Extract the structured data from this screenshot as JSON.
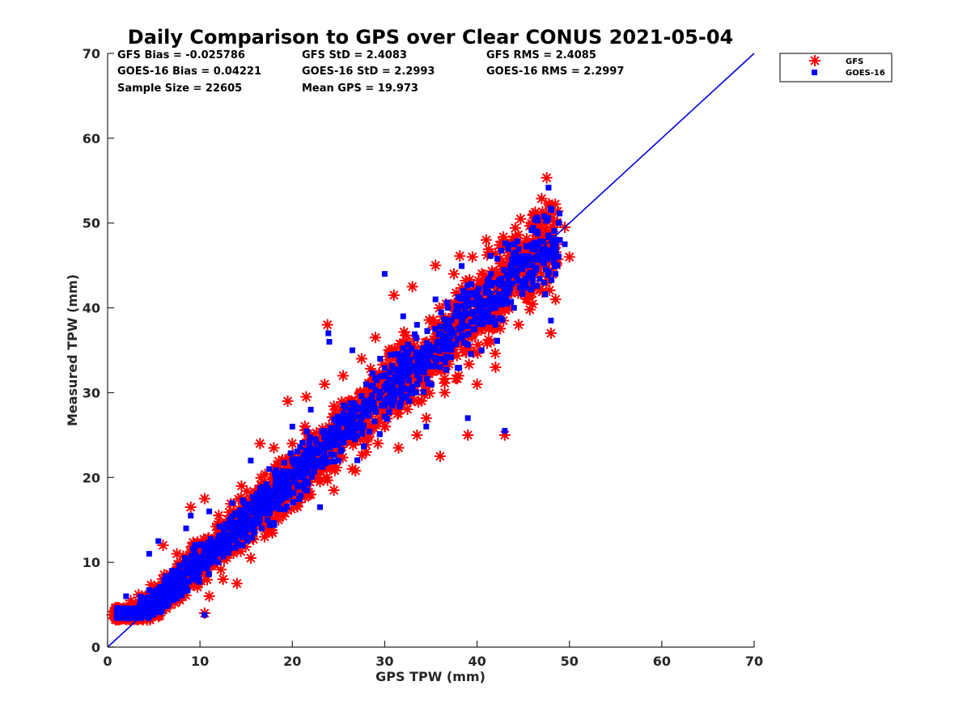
{
  "chart_data": {
    "type": "scatter",
    "title": "Daily Comparison to GPS over Clear CONUS 2021-05-04",
    "xlabel": "GPS TPW (mm)",
    "ylabel": "Measured TPW (mm)",
    "xlim": [
      0,
      70
    ],
    "ylim": [
      0,
      70
    ],
    "xticks": [
      "0",
      "10",
      "20",
      "30",
      "40",
      "50",
      "60",
      "70"
    ],
    "yticks": [
      "0",
      "10",
      "20",
      "30",
      "40",
      "50",
      "60",
      "70"
    ],
    "grid": false,
    "legend_position": "top-right outside",
    "stats": [
      [
        "GFS Bias = -0.025786",
        "GFS StD = 2.4083",
        "GFS RMS = 2.4085"
      ],
      [
        "GOES-16 Bias = 0.04221",
        "GOES-16 StD = 2.2993",
        "GOES-16 RMS = 2.2997"
      ],
      [
        "Sample Size = 22605",
        "Mean GPS = 19.973"
      ]
    ],
    "reference_line": {
      "name": "1:1 line",
      "x": [
        0,
        70
      ],
      "y": [
        0,
        70
      ],
      "color": "#0000dd"
    },
    "series": [
      {
        "name": "GFS",
        "marker": "asterisk",
        "color": "#ff0000",
        "approx_sample_points": [
          [
            0.5,
            3.8
          ],
          [
            1.5,
            3.5
          ],
          [
            2.5,
            5.5
          ],
          [
            4,
            4.5
          ],
          [
            5,
            6
          ],
          [
            6,
            12
          ],
          [
            7.5,
            11
          ],
          [
            8,
            9
          ],
          [
            9,
            16.5
          ],
          [
            10.5,
            17.5
          ],
          [
            10.5,
            4
          ],
          [
            11,
            6
          ],
          [
            12.5,
            8
          ],
          [
            13,
            14
          ],
          [
            14,
            7.5
          ],
          [
            14.5,
            19
          ],
          [
            15.5,
            10.5
          ],
          [
            16.5,
            24
          ],
          [
            17,
            13
          ],
          [
            18,
            23.5
          ],
          [
            18.5,
            15
          ],
          [
            19.5,
            29
          ],
          [
            20,
            24
          ],
          [
            20.5,
            17
          ],
          [
            21.5,
            29.5
          ],
          [
            22,
            18
          ],
          [
            23,
            19.5
          ],
          [
            23.5,
            31
          ],
          [
            23.8,
            38
          ],
          [
            24.5,
            18.5
          ],
          [
            25.5,
            32
          ],
          [
            26.5,
            21
          ],
          [
            27.5,
            34
          ],
          [
            28,
            23
          ],
          [
            29,
            36.5
          ],
          [
            30,
            26
          ],
          [
            31,
            41.5
          ],
          [
            31.5,
            23.5
          ],
          [
            33,
            42.5
          ],
          [
            33.5,
            25
          ],
          [
            34.5,
            27
          ],
          [
            35.5,
            45
          ],
          [
            36,
            22.5
          ],
          [
            36.5,
            30
          ],
          [
            37.5,
            44
          ],
          [
            38,
            32
          ],
          [
            39,
            25
          ],
          [
            39.5,
            46
          ],
          [
            40,
            31
          ],
          [
            41,
            48
          ],
          [
            41.5,
            36
          ],
          [
            42,
            33
          ],
          [
            42.5,
            47
          ],
          [
            43,
            25
          ],
          [
            44,
            48
          ],
          [
            44.5,
            38
          ],
          [
            45.5,
            41
          ],
          [
            46.5,
            48.5
          ],
          [
            47,
            44
          ],
          [
            48,
            37
          ],
          [
            48.5,
            41
          ],
          [
            49.5,
            49.5
          ],
          [
            50,
            46
          ]
        ]
      },
      {
        "name": "GOES-16",
        "marker": "square",
        "color": "#0000ff",
        "approx_sample_points": [
          [
            1,
            3.6
          ],
          [
            2,
            6
          ],
          [
            3,
            4.5
          ],
          [
            4.5,
            11
          ],
          [
            5.5,
            12.5
          ],
          [
            7,
            9
          ],
          [
            8.5,
            14
          ],
          [
            9,
            15.5
          ],
          [
            10.5,
            3.8
          ],
          [
            11,
            16
          ],
          [
            12,
            10
          ],
          [
            13.5,
            17
          ],
          [
            14.5,
            12
          ],
          [
            15.5,
            22
          ],
          [
            16.5,
            15
          ],
          [
            17.5,
            21
          ],
          [
            19,
            18.5
          ],
          [
            20,
            26
          ],
          [
            21,
            20
          ],
          [
            22,
            28
          ],
          [
            23,
            16.5
          ],
          [
            23.9,
            37
          ],
          [
            24,
            36
          ],
          [
            25,
            26
          ],
          [
            26.5,
            35
          ],
          [
            28,
            31
          ],
          [
            29.5,
            34
          ],
          [
            30,
            44
          ],
          [
            31,
            30
          ],
          [
            32,
            39
          ],
          [
            33.5,
            38
          ],
          [
            34.5,
            26
          ],
          [
            35.5,
            41
          ],
          [
            36,
            33
          ],
          [
            37.5,
            39
          ],
          [
            38.5,
            42
          ],
          [
            39,
            27
          ],
          [
            40.5,
            35
          ],
          [
            41.5,
            44
          ],
          [
            42,
            38
          ],
          [
            43,
            25.5
          ],
          [
            44,
            40
          ],
          [
            45,
            46
          ],
          [
            46,
            43
          ],
          [
            46.5,
            49
          ],
          [
            48,
            38.5
          ],
          [
            48.5,
            44
          ],
          [
            49.5,
            47.5
          ]
        ]
      }
    ]
  },
  "colors": {
    "gfs": "#ff0000",
    "goes16": "#0000ff",
    "reference_line": "#0000dd",
    "axis": "#262626"
  }
}
